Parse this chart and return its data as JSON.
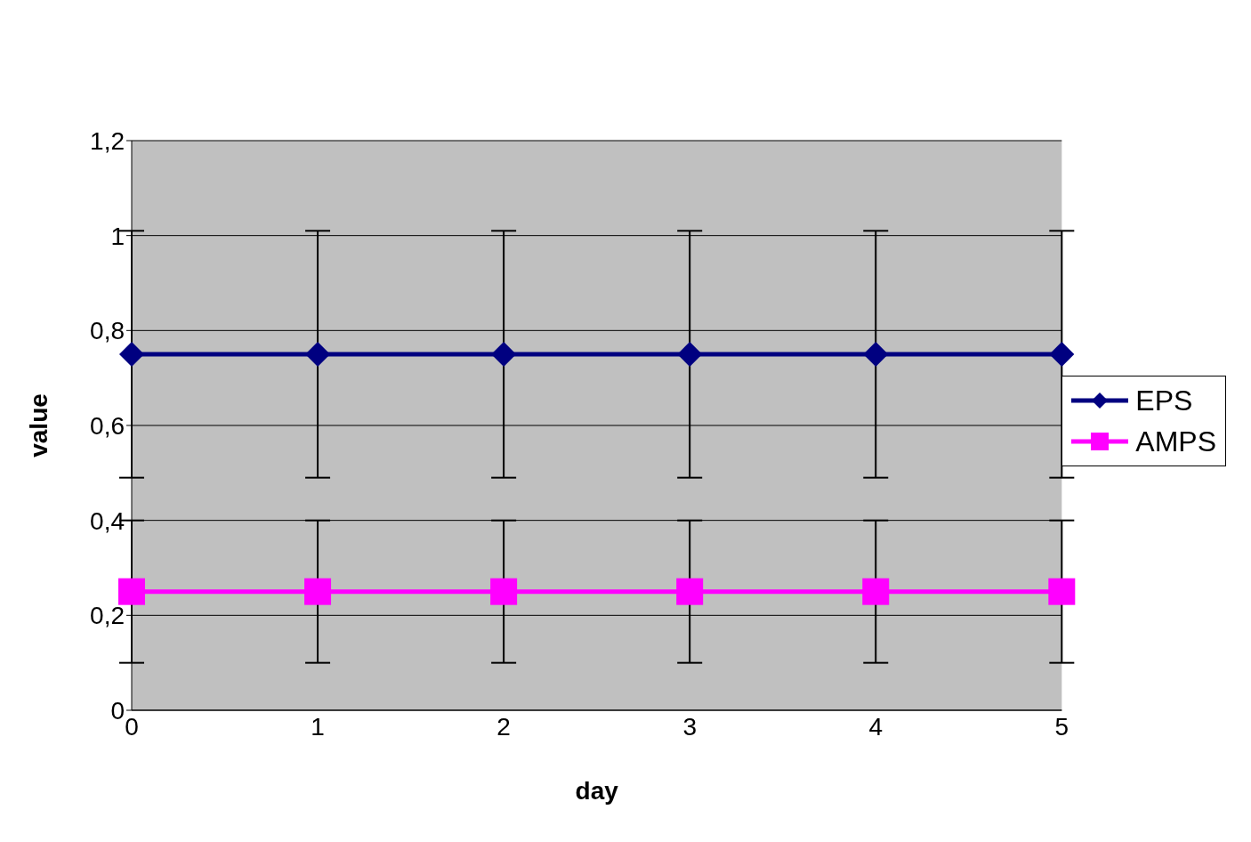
{
  "chart_data": {
    "type": "line",
    "xlabel": "day",
    "ylabel": "value",
    "categories": [
      "0",
      "1",
      "2",
      "3",
      "4",
      "5"
    ],
    "series": [
      {
        "name": "EPS",
        "color": "#000080",
        "marker": "diamond",
        "values": [
          0.75,
          0.75,
          0.75,
          0.75,
          0.75,
          0.75
        ],
        "errors": [
          0.26,
          0.26,
          0.26,
          0.26,
          0.26,
          0.26
        ]
      },
      {
        "name": "AMPS",
        "color": "#ff00ff",
        "marker": "square",
        "values": [
          0.25,
          0.25,
          0.25,
          0.25,
          0.25,
          0.25
        ],
        "errors": [
          0.15,
          0.15,
          0.15,
          0.15,
          0.15,
          0.15
        ]
      }
    ],
    "ylim": [
      0,
      1.2
    ],
    "yticks": [
      0,
      {
        "value": 0.2,
        "label": "0,2"
      },
      {
        "value": 0.4,
        "label": "0,4"
      },
      {
        "value": 0.6,
        "label": "0,6"
      },
      {
        "value": 0.8,
        "label": "0,8"
      },
      1,
      {
        "value": 1.2,
        "label": "1,2"
      }
    ],
    "grid": "y",
    "legend": "right",
    "line_style": "solid"
  }
}
